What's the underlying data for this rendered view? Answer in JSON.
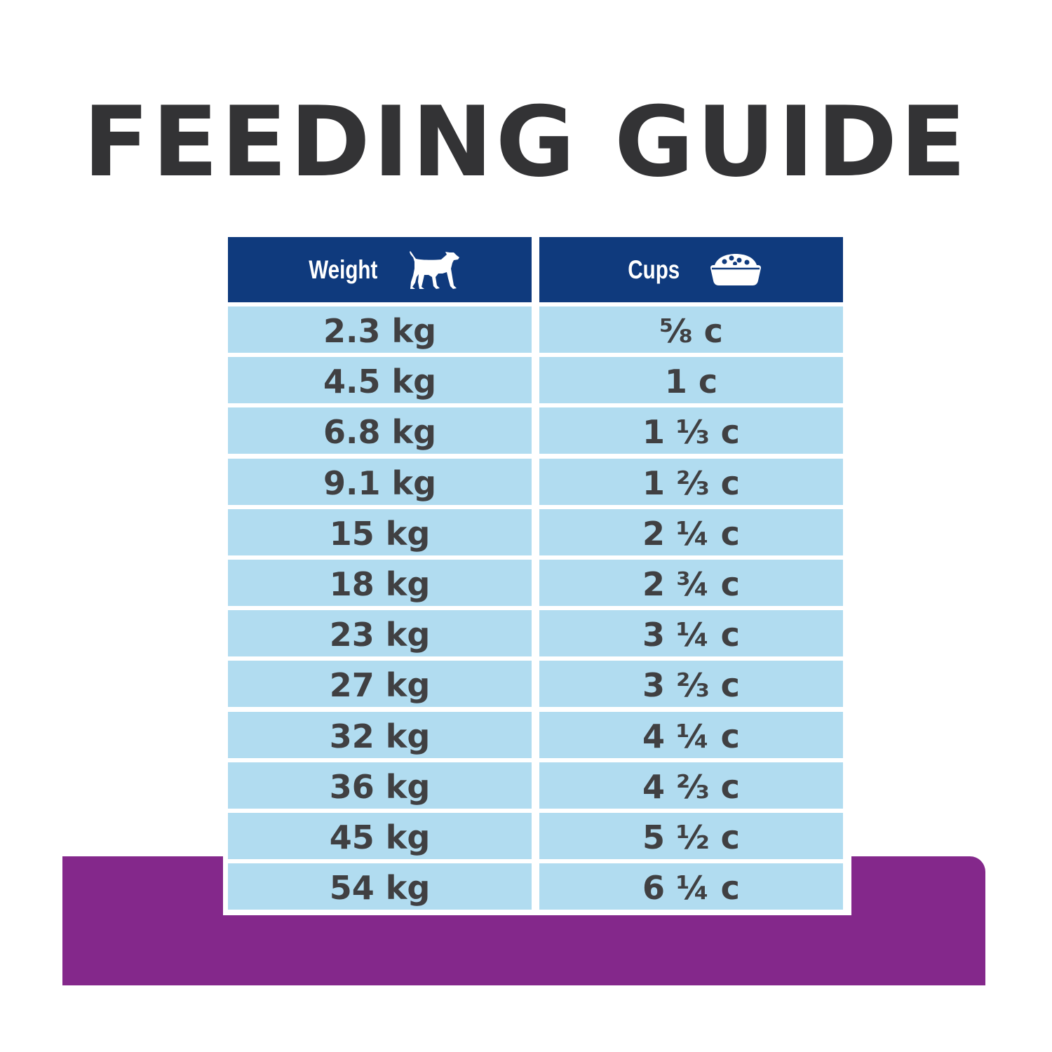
{
  "title": "FEEDING GUIDE",
  "colors": {
    "title": "#333335",
    "header_bg": "#0f3a7d",
    "row_bg": "#b1dcf0",
    "band": "#84288b",
    "cell_text": "#404042"
  },
  "table": {
    "headers": [
      {
        "label": "Weight",
        "icon": "dog-icon"
      },
      {
        "label": "Cups",
        "icon": "food-bowl-icon"
      }
    ],
    "rows": [
      {
        "weight": "2.3 kg",
        "cups": "⅝ c"
      },
      {
        "weight": "4.5 kg",
        "cups": "1 c"
      },
      {
        "weight": "6.8 kg",
        "cups": "1 ⅓ c"
      },
      {
        "weight": "9.1 kg",
        "cups": "1 ⅔ c"
      },
      {
        "weight": "15 kg",
        "cups": "2 ¼ c"
      },
      {
        "weight": "18 kg",
        "cups": "2 ¾ c"
      },
      {
        "weight": "23 kg",
        "cups": "3 ¼ c"
      },
      {
        "weight": "27 kg",
        "cups": "3 ⅔ c"
      },
      {
        "weight": "32 kg",
        "cups": "4 ¼ c"
      },
      {
        "weight": "36 kg",
        "cups": "4 ⅔ c"
      },
      {
        "weight": "45 kg",
        "cups": "5 ½ c"
      },
      {
        "weight": "54 kg",
        "cups": "6 ¼ c"
      }
    ]
  }
}
